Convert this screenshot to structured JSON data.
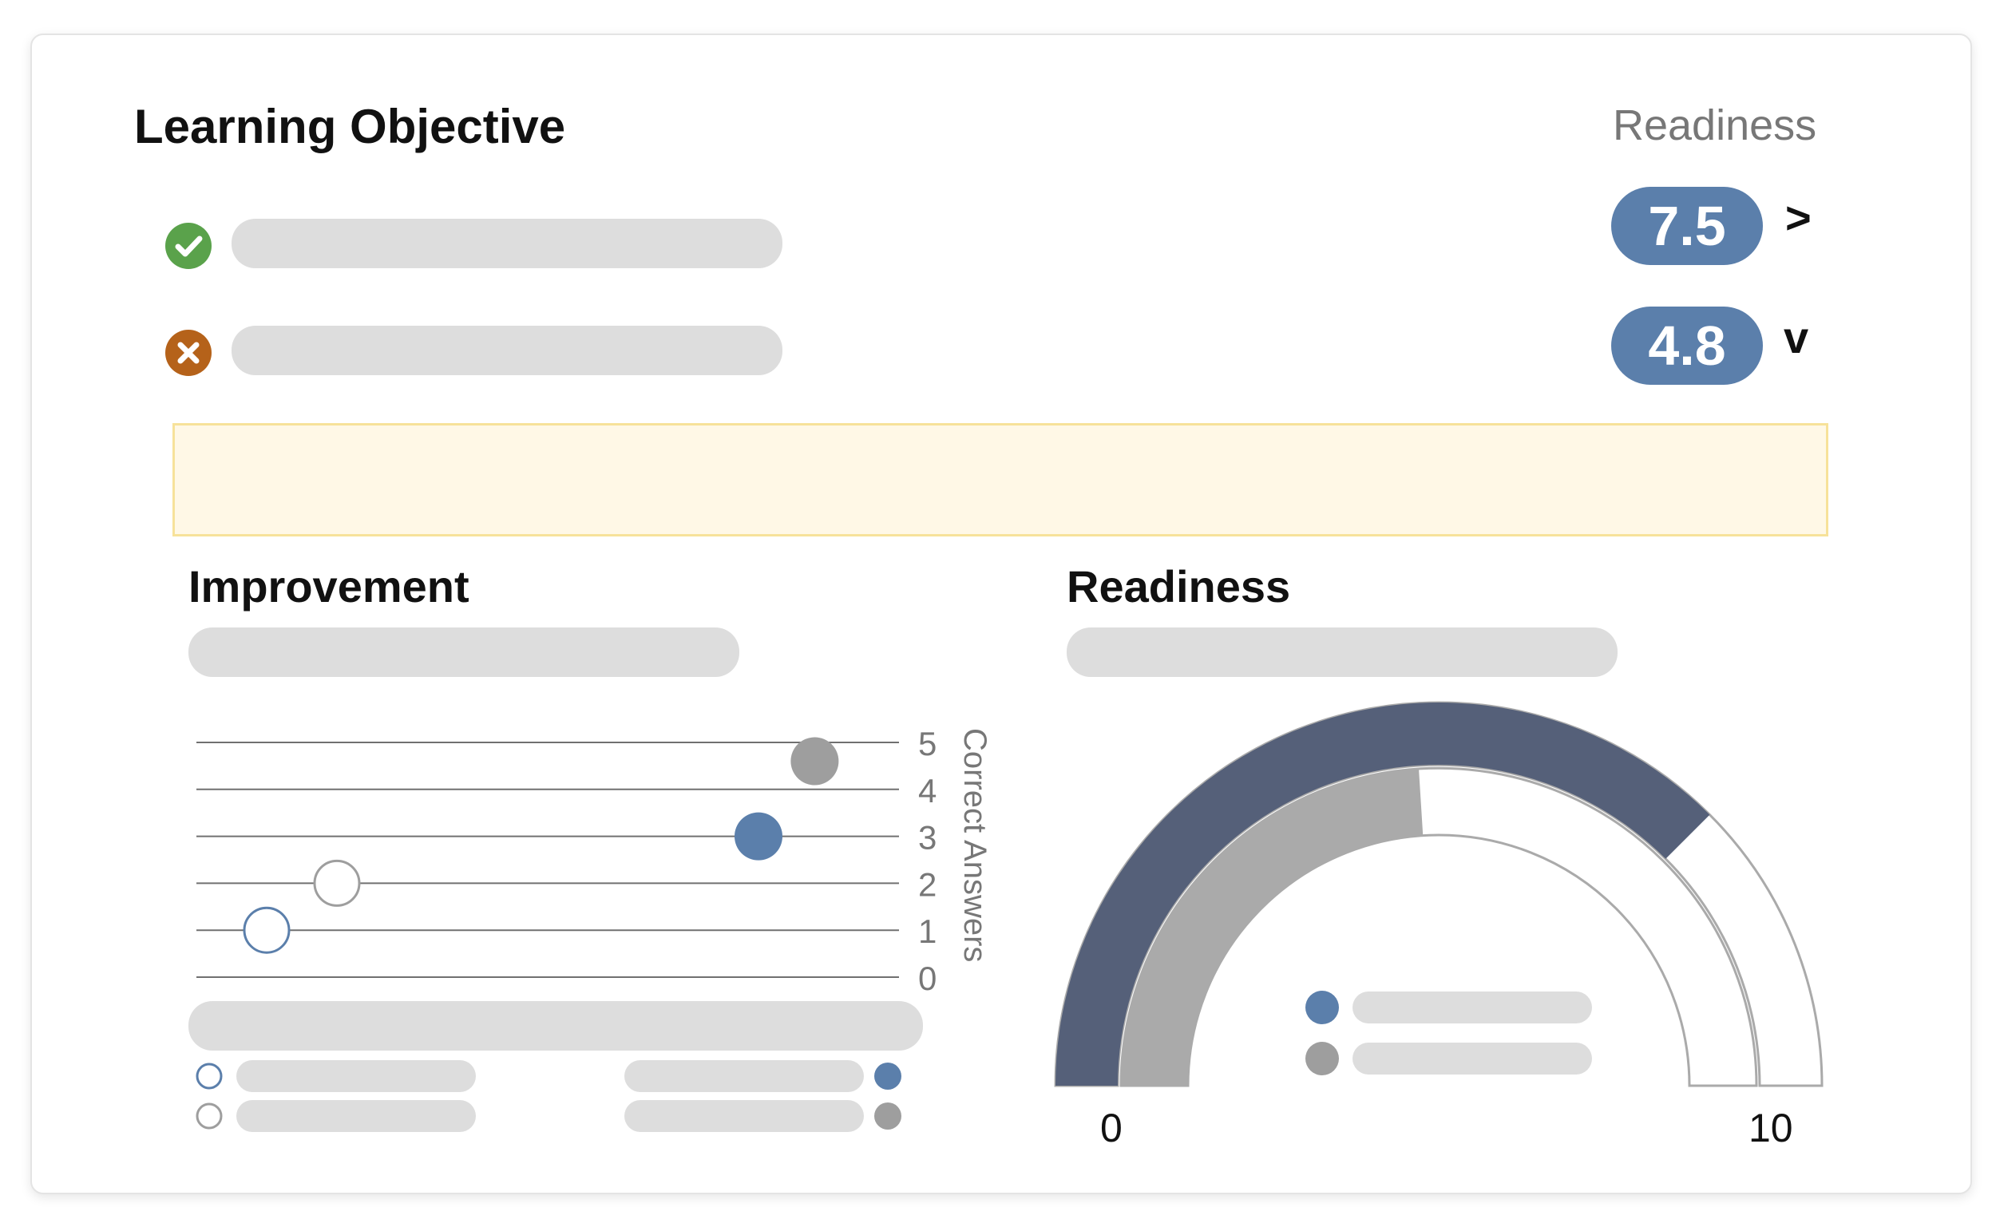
{
  "objective": {
    "title": "Learning Objective",
    "rows": [
      {
        "status_icon": "check-circle-icon",
        "color": "#5aa24b"
      },
      {
        "status_icon": "x-circle-icon",
        "color": "#b5621a"
      }
    ]
  },
  "readiness_summary": {
    "label": "Readiness",
    "scores": [
      {
        "value": "7.5",
        "indicator": ">"
      },
      {
        "value": "4.8",
        "indicator": "v"
      }
    ],
    "accent": "#5b7fab"
  },
  "improvement": {
    "title": "Improvement",
    "axis_label": "Correct Answers",
    "ticks": [
      "5",
      "4",
      "3",
      "2",
      "1",
      "0"
    ]
  },
  "readiness_gauge": {
    "title": "Readiness",
    "min_label": "0",
    "max_label": "10"
  },
  "colors": {
    "blue": "#5b7fab",
    "gray": "#9e9e9e",
    "navy": "#556079",
    "gauge_gray": "#aaaaaa",
    "placeholder": "#dddddd"
  },
  "chart_data": [
    {
      "type": "scatter",
      "ylabel": "Correct Answers",
      "ylim": [
        0,
        5
      ],
      "y_ticks": [
        0,
        1,
        2,
        3,
        4,
        5
      ],
      "series": [
        {
          "marker": "hollow-blue",
          "values": [
            {
              "x": 0.1,
              "y": 1.0
            }
          ]
        },
        {
          "marker": "hollow-gray",
          "values": [
            {
              "x": 0.2,
              "y": 2.0
            }
          ]
        },
        {
          "marker": "filled-blue",
          "values": [
            {
              "x": 0.8,
              "y": 3.0
            }
          ]
        },
        {
          "marker": "filled-gray",
          "values": [
            {
              "x": 0.88,
              "y": 4.6
            }
          ]
        }
      ]
    },
    {
      "type": "gauge",
      "min": 0,
      "max": 10,
      "outer_value": 7.5,
      "inner_value": 4.8
    }
  ]
}
